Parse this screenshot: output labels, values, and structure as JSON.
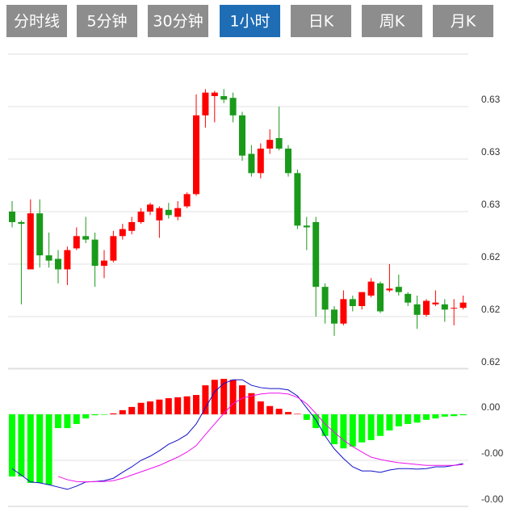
{
  "buttons": [
    {
      "label": "分时线"
    },
    {
      "label": "5分钟"
    },
    {
      "label": "30分钟"
    },
    {
      "label": "1小时",
      "selected": true
    },
    {
      "label": "日K"
    },
    {
      "label": "周K"
    },
    {
      "label": "月K"
    }
  ],
  "chart_data": [
    {
      "type": "candlestick",
      "up_color": "#ff0000",
      "down_color": "#1a9a1a",
      "grid": true,
      "ylim": [
        0.618,
        0.636
      ],
      "yticks": [
        {
          "value": 0.633,
          "label": "0.63"
        },
        {
          "value": 0.63,
          "label": "0.63"
        },
        {
          "value": 0.627,
          "label": "0.63"
        },
        {
          "value": 0.624,
          "label": "0.62"
        },
        {
          "value": 0.621,
          "label": "0.62"
        },
        {
          "value": 0.618,
          "label": "0.62"
        }
      ],
      "open": [
        0.627,
        0.6264,
        0.6237,
        0.6269,
        0.6245,
        0.6243,
        0.6237,
        0.6249,
        0.6256,
        0.6254,
        0.6239,
        0.6242,
        0.6256,
        0.6259,
        0.6264,
        0.627,
        0.6265,
        0.6271,
        0.6267,
        0.6273,
        0.628,
        0.6325,
        0.6336,
        0.6336,
        0.6335,
        0.6325,
        0.6303,
        0.6292,
        0.6306,
        0.6312,
        0.6306,
        0.6292,
        0.6262,
        0.6264,
        0.6227,
        0.6214,
        0.6206,
        0.622,
        0.6216,
        0.6222,
        0.6229,
        0.6225,
        0.6227,
        0.6223,
        0.6217,
        0.6211,
        0.6217,
        0.6217,
        0.6215,
        0.6215
      ],
      "close": [
        0.6264,
        0.6263,
        0.6269,
        0.6245,
        0.6242,
        0.6237,
        0.6248,
        0.6256,
        0.6254,
        0.6239,
        0.6242,
        0.6256,
        0.626,
        0.6264,
        0.627,
        0.6274,
        0.6272,
        0.6268,
        0.6272,
        0.628,
        0.6325,
        0.6338,
        0.6338,
        0.6334,
        0.6325,
        0.6302,
        0.6292,
        0.6306,
        0.6311,
        0.6306,
        0.6292,
        0.6262,
        0.6261,
        0.6227,
        0.6214,
        0.6206,
        0.622,
        0.6216,
        0.6224,
        0.623,
        0.6213,
        0.6226,
        0.6224,
        0.6218,
        0.6211,
        0.6219,
        0.6218,
        0.6214,
        0.6215,
        0.6218
      ],
      "high": [
        0.6276,
        0.6265,
        0.6277,
        0.6277,
        0.6258,
        0.6248,
        0.625,
        0.6261,
        0.6267,
        0.6258,
        0.6248,
        0.6259,
        0.6263,
        0.6267,
        0.6272,
        0.6275,
        0.6273,
        0.6275,
        0.6276,
        0.6281,
        0.6337,
        0.634,
        0.6339,
        0.634,
        0.6338,
        0.6327,
        0.6308,
        0.6309,
        0.6317,
        0.633,
        0.6308,
        0.6294,
        0.6267,
        0.6267,
        0.6229,
        0.6216,
        0.6225,
        0.6222,
        0.6224,
        0.6232,
        0.623,
        0.624,
        0.6234,
        0.6224,
        0.6222,
        0.622,
        0.6225,
        0.622,
        0.622,
        0.6222
      ],
      "low": [
        0.6261,
        0.6217,
        0.6237,
        0.6238,
        0.6238,
        0.6229,
        0.6228,
        0.6248,
        0.6252,
        0.6227,
        0.6232,
        0.6241,
        0.6254,
        0.6257,
        0.6263,
        0.6268,
        0.6255,
        0.6266,
        0.6265,
        0.6272,
        0.6279,
        0.6318,
        0.6321,
        0.6332,
        0.6321,
        0.6299,
        0.629,
        0.6289,
        0.6303,
        0.6305,
        0.629,
        0.626,
        0.6248,
        0.621,
        0.6206,
        0.6199,
        0.6205,
        0.6213,
        0.6214,
        0.6221,
        0.6212,
        0.6224,
        0.6222,
        0.6216,
        0.6203,
        0.621,
        0.6216,
        0.6207,
        0.6205,
        0.6214
      ]
    },
    {
      "type": "macd",
      "grid": true,
      "ylim": [
        -0.002,
        0.001
      ],
      "yticks": [
        {
          "value": 0,
          "label": "0.00"
        },
        {
          "value": -0.001,
          "label": "-0.00"
        },
        {
          "value": -0.002,
          "label": "-0.00"
        }
      ],
      "series": [
        {
          "kind": "histogram",
          "up_color": "#ff0000",
          "down_color": "#00ff00",
          "values": [
            -0.00135,
            -0.00135,
            -0.00149,
            -0.00149,
            -0.00153,
            -0.0003,
            -0.0003,
            -0.00021,
            -9e-05,
            -2e-05,
            -1e-05,
            2e-05,
            9e-05,
            0.00016,
            0.00025,
            0.00028,
            0.00032,
            0.00035,
            0.00037,
            0.00039,
            0.00042,
            0.00063,
            0.00075,
            0.00077,
            0.00075,
            0.00063,
            0.00046,
            0.00028,
            0.00018,
            0.00012,
            5e-05,
            1e-05,
            -0.00012,
            -0.0003,
            -0.00047,
            -0.00065,
            -0.00074,
            -0.0007,
            -0.00061,
            -0.00056,
            -0.00047,
            -0.00035,
            -0.00026,
            -0.00021,
            -0.00018,
            -0.00012,
            -9e-05,
            -5e-05,
            -4e-05,
            -2e-05
          ]
        },
        {
          "kind": "line",
          "color": "#1010c8",
          "values": [
            -0.00118,
            -0.00132,
            -0.00147,
            -0.00149,
            -0.00153,
            -0.00158,
            -0.00163,
            -0.00156,
            -0.00147,
            -0.00146,
            -0.00144,
            -0.00139,
            -0.00126,
            -0.00114,
            -0.001,
            -0.00091,
            -0.00079,
            -0.00065,
            -0.00056,
            -0.00044,
            -0.00021,
            0.00014,
            0.00049,
            0.00067,
            0.00075,
            0.00075,
            0.00063,
            0.00058,
            0.00056,
            0.00056,
            0.00053,
            0.0004,
            0.00014,
            -0.00012,
            -0.00047,
            -0.00075,
            -0.00096,
            -0.00114,
            -0.00123,
            -0.00123,
            -0.00126,
            -0.00121,
            -0.00118,
            -0.00118,
            -0.00119,
            -0.00118,
            -0.00114,
            -0.00114,
            -0.00111,
            -0.00107
          ]
        },
        {
          "kind": "line",
          "color": "#ee10ee",
          "values": [
            null,
            null,
            null,
            null,
            null,
            -0.00135,
            -0.00142,
            -0.00146,
            -0.00147,
            -0.00146,
            -0.00146,
            -0.00144,
            -0.00139,
            -0.00132,
            -0.00125,
            -0.00118,
            -0.00111,
            -0.00102,
            -0.00093,
            -0.00082,
            -0.00068,
            -0.00044,
            -0.00021,
            2e-05,
            0.00023,
            0.00035,
            0.0004,
            0.00044,
            0.00046,
            0.00046,
            0.00044,
            0.00037,
            0.00023,
            2e-05,
            -0.00021,
            -0.00039,
            -0.00056,
            -0.0007,
            -0.00082,
            -0.00093,
            -0.00098,
            -0.00102,
            -0.00105,
            -0.00107,
            -0.00109,
            -0.00111,
            -0.00111,
            -0.00111,
            -0.00111,
            -0.00109
          ]
        }
      ]
    }
  ]
}
